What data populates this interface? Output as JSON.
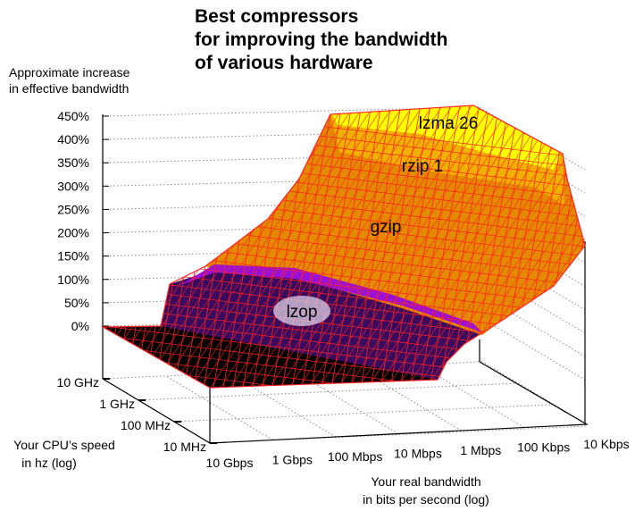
{
  "chart_data": {
    "type": "surface",
    "title": [
      "Best compressors",
      "for improving the bandwidth",
      "of various hardware"
    ],
    "zlabel": [
      "Approximate increase",
      "in effective bandwidth"
    ],
    "ylabel": [
      "Your CPU’s speed",
      "in hz (log)"
    ],
    "xlabel": [
      "Your real bandwidth",
      "in bits per second (log)"
    ],
    "z_ticks": [
      "450%",
      "400%",
      "350%",
      "300%",
      "250%",
      "200%",
      "150%",
      "100%",
      "50%",
      "0%"
    ],
    "zlim": [
      0,
      450
    ],
    "x_ticks": [
      "10 Gbps",
      "1 Gbps",
      "100 Mbps",
      "10 Mbps",
      "1 Mbps",
      "100 Kbps",
      "10 Kbps"
    ],
    "y_ticks": [
      "10 GHz",
      "1 GHz",
      "100 MHz",
      "10 MHz"
    ],
    "x_scale": "log",
    "y_scale": "log",
    "grid": true,
    "annotations": [
      "lzma 26",
      "rzip 1",
      "gzip",
      "lzop"
    ],
    "colors": {
      "mesh": "#ff2020",
      "low": "#000000",
      "purple": "#3a0a5e",
      "orange": "#e89000",
      "yellow": "#ffff00"
    }
  }
}
